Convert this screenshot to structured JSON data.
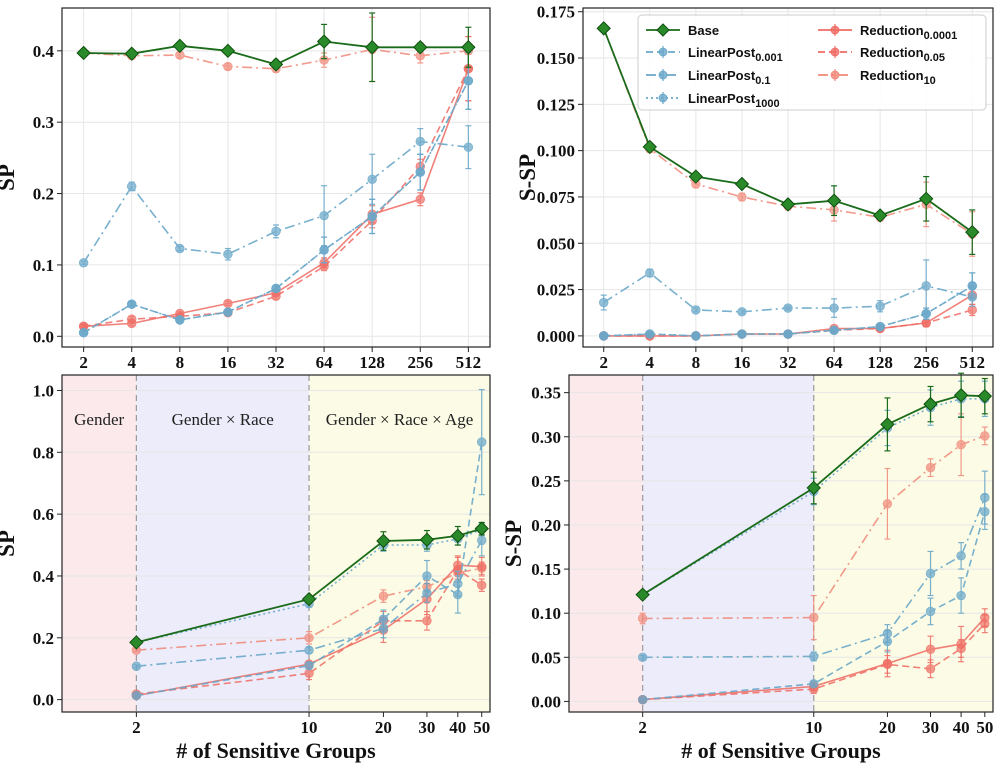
{
  "chart_data": [
    {
      "type": "line",
      "panel": "top-left",
      "xscale": "log2",
      "xlabel": "",
      "ylabel": "SP",
      "x": [
        2,
        4,
        8,
        16,
        32,
        64,
        128,
        256,
        512
      ],
      "xticklabels": [
        "2",
        "4",
        "8",
        "16",
        "32",
        "64",
        "128",
        "256",
        "512"
      ],
      "ylim": [
        -0.015,
        0.46
      ],
      "yticks": [
        "0.0",
        "0.1",
        "0.2",
        "0.3",
        "0.4"
      ],
      "series": [
        {
          "name": "Base",
          "values": [
            0.397,
            0.396,
            0.407,
            0.4,
            0.381,
            0.413,
            0.405,
            0.405,
            0.405
          ],
          "err": [
            0.003,
            0.003,
            0.004,
            0.004,
            0.006,
            0.024,
            0.048,
            0.006,
            0.028
          ]
        },
        {
          "name": "LinearPost_0.001",
          "values": [
            0.005,
            0.045,
            0.023,
            0.034,
            0.067,
            0.121,
            0.168,
            0.23,
            0.358
          ],
          "err": [
            0.002,
            0.003,
            0.003,
            0.003,
            0.004,
            0.018,
            0.024,
            0.025,
            0.04
          ]
        },
        {
          "name": "LinearPost_0.1",
          "values": [
            0.103,
            0.21,
            0.123,
            0.115,
            0.147,
            0.169,
            0.22,
            0.273,
            0.265
          ],
          "err": [
            0.002,
            0.006,
            0.003,
            0.008,
            0.009,
            0.042,
            0.035,
            0.018,
            0.03
          ]
        },
        {
          "name": "LinearPost_1000",
          "values": [
            0.005,
            0.045,
            0.023,
            0.034,
            0.067,
            0.121,
            0.168,
            0.23,
            0.358
          ],
          "err": [
            0.002,
            0.003,
            0.003,
            0.003,
            0.004,
            0.018,
            0.024,
            0.025,
            0.04
          ]
        },
        {
          "name": "Reduction_0.0001",
          "values": [
            0.014,
            0.018,
            0.032,
            0.046,
            0.061,
            0.103,
            0.171,
            0.192,
            0.375
          ],
          "err": [
            0.002,
            0.003,
            0.003,
            0.003,
            0.004,
            0.007,
            0.012,
            0.009,
            0.045
          ]
        },
        {
          "name": "Reduction_0.05",
          "values": [
            0.014,
            0.024,
            0.028,
            0.033,
            0.056,
            0.098,
            0.162,
            0.238,
            0.375
          ],
          "err": [
            0.002,
            0.004,
            0.003,
            0.003,
            0.004,
            0.006,
            0.01,
            0.01,
            0.045
          ]
        },
        {
          "name": "Reduction_10",
          "values": [
            0.397,
            0.393,
            0.394,
            0.378,
            0.375,
            0.387,
            0.402,
            0.393,
            0.4
          ],
          "err": [
            0.003,
            0.004,
            0.004,
            0.004,
            0.005,
            0.01,
            0.045,
            0.01,
            0.005
          ]
        }
      ]
    },
    {
      "type": "line",
      "panel": "top-right",
      "xscale": "log2",
      "xlabel": "",
      "ylabel": "S-SP",
      "x": [
        2,
        4,
        8,
        16,
        32,
        64,
        128,
        256,
        512
      ],
      "xticklabels": [
        "2",
        "4",
        "8",
        "16",
        "32",
        "64",
        "128",
        "256",
        "512"
      ],
      "ylim": [
        -0.006,
        0.177
      ],
      "yticks": [
        "0.000",
        "0.025",
        "0.050",
        "0.075",
        "0.100",
        "0.125",
        "0.150",
        "0.175"
      ],
      "series": [
        {
          "name": "Base",
          "values": [
            0.166,
            0.102,
            0.086,
            0.082,
            0.071,
            0.073,
            0.065,
            0.074,
            0.056
          ],
          "err": [
            0.001,
            0.002,
            0.002,
            0.002,
            0.002,
            0.008,
            0.002,
            0.012,
            0.012
          ]
        },
        {
          "name": "LinearPost_0.001",
          "values": [
            0.0,
            0.001,
            0.0,
            0.001,
            0.001,
            0.003,
            0.005,
            0.012,
            0.027
          ],
          "err": [
            0.0005,
            0.0005,
            0.0005,
            0.0005,
            0.0005,
            0.001,
            0.001,
            0.003,
            0.007
          ]
        },
        {
          "name": "LinearPost_0.1",
          "values": [
            0.018,
            0.034,
            0.014,
            0.013,
            0.015,
            0.015,
            0.016,
            0.027,
            0.021
          ],
          "err": [
            0.004,
            0.002,
            0.001,
            0.001,
            0.001,
            0.005,
            0.003,
            0.014,
            0.005
          ]
        },
        {
          "name": "LinearPost_1000",
          "values": [
            0.0,
            0.001,
            0.0,
            0.001,
            0.001,
            0.003,
            0.005,
            0.012,
            0.027
          ],
          "err": [
            0.0005,
            0.0005,
            0.0005,
            0.0005,
            0.0005,
            0.001,
            0.001,
            0.003,
            0.007
          ]
        },
        {
          "name": "Reduction_0.0001",
          "values": [
            0.0,
            0.0,
            0.0,
            0.001,
            0.001,
            0.004,
            0.004,
            0.007,
            0.022
          ],
          "err": [
            0.0005,
            0.0005,
            0.0005,
            0.0005,
            0.0005,
            0.001,
            0.001,
            0.002,
            0.005
          ]
        },
        {
          "name": "Reduction_0.05",
          "values": [
            0.0,
            0.0,
            0.0,
            0.001,
            0.001,
            0.003,
            0.004,
            0.007,
            0.014
          ],
          "err": [
            0.0005,
            0.0005,
            0.0005,
            0.0005,
            0.0005,
            0.001,
            0.001,
            0.002,
            0.003
          ]
        },
        {
          "name": "Reduction_10",
          "values": [
            0.166,
            0.101,
            0.082,
            0.075,
            0.07,
            0.068,
            0.064,
            0.071,
            0.055
          ],
          "err": [
            0.001,
            0.002,
            0.002,
            0.002,
            0.002,
            0.006,
            0.002,
            0.012,
            0.012
          ]
        }
      ]
    },
    {
      "type": "line",
      "panel": "bottom-left",
      "xscale": "log",
      "xlabel": "# of Sensitive Groups",
      "ylabel": "SP",
      "x": [
        2,
        10,
        20,
        30,
        40,
        50
      ],
      "xticklabels": [
        "2",
        "10",
        "20",
        "30",
        "40",
        "50"
      ],
      "xlim": [
        1.0,
        54
      ],
      "ylim": [
        -0.04,
        1.05
      ],
      "yticks": [
        "0.0",
        "0.2",
        "0.4",
        "0.6",
        "0.8",
        "1.0"
      ],
      "regions": [
        {
          "label": "Gender",
          "from": 1.0,
          "to": 2,
          "color": "#fce9ec"
        },
        {
          "label": "Gender × Race",
          "from": 2,
          "to": 10,
          "color": "#ececfb"
        },
        {
          "label": "Gender × Race × Age",
          "from": 10,
          "to": 54,
          "color": "#fcfce6"
        }
      ],
      "series": [
        {
          "name": "Base",
          "values": [
            0.185,
            0.325,
            0.513,
            0.517,
            0.53,
            0.553
          ],
          "err": [
            0.01,
            0.01,
            0.03,
            0.03,
            0.03,
            0.02
          ]
        },
        {
          "name": "LinearPost_0.001",
          "values": [
            0.013,
            0.11,
            0.26,
            0.4,
            0.34,
            0.833
          ],
          "err": [
            0.005,
            0.01,
            0.03,
            0.05,
            0.06,
            0.17
          ]
        },
        {
          "name": "LinearPost_0.1",
          "values": [
            0.108,
            0.16,
            0.23,
            0.345,
            0.375,
            0.515
          ],
          "err": [
            0.005,
            0.01,
            0.03,
            0.03,
            0.04,
            0.05
          ]
        },
        {
          "name": "LinearPost_1000",
          "values": [
            0.185,
            0.31,
            0.5,
            0.5,
            0.52,
            0.55
          ],
          "err": [
            0.01,
            0.01,
            0.02,
            0.02,
            0.02,
            0.02
          ]
        },
        {
          "name": "Reduction_0.0001",
          "values": [
            0.013,
            0.115,
            0.225,
            0.325,
            0.435,
            0.43
          ],
          "err": [
            0.005,
            0.01,
            0.04,
            0.05,
            0.03,
            0.03
          ]
        },
        {
          "name": "Reduction_0.05",
          "values": [
            0.018,
            0.085,
            0.255,
            0.255,
            0.42,
            0.37
          ],
          "err": [
            0.005,
            0.02,
            0.03,
            0.03,
            0.04,
            0.02
          ]
        },
        {
          "name": "Reduction_10",
          "values": [
            0.16,
            0.2,
            0.335,
            0.365,
            0.41,
            0.425
          ],
          "err": [
            0.005,
            0.02,
            0.02,
            0.02,
            0.02,
            0.02
          ]
        }
      ]
    },
    {
      "type": "line",
      "panel": "bottom-right",
      "xscale": "log",
      "xlabel": "# of Sensitive Groups",
      "ylabel": "S-SP",
      "x": [
        2,
        10,
        20,
        30,
        40,
        50
      ],
      "xticklabels": [
        "2",
        "10",
        "20",
        "30",
        "40",
        "50"
      ],
      "xlim": [
        1.0,
        54
      ],
      "ylim": [
        -0.012,
        0.37
      ],
      "yticks": [
        "0.00",
        "0.05",
        "0.10",
        "0.15",
        "0.20",
        "0.25",
        "0.30",
        "0.35"
      ],
      "regions": [
        {
          "label": "",
          "from": 1.0,
          "to": 2,
          "color": "#fce9ec"
        },
        {
          "label": "",
          "from": 2,
          "to": 10,
          "color": "#ececfb"
        },
        {
          "label": "",
          "from": 10,
          "to": 54,
          "color": "#fcfce6"
        }
      ],
      "series": [
        {
          "name": "Base",
          "values": [
            0.121,
            0.242,
            0.314,
            0.337,
            0.347,
            0.346
          ],
          "err": [
            0.003,
            0.018,
            0.03,
            0.02,
            0.025,
            0.02
          ]
        },
        {
          "name": "LinearPost_0.001",
          "values": [
            0.002,
            0.02,
            0.068,
            0.102,
            0.12,
            0.215
          ],
          "err": [
            0.001,
            0.003,
            0.012,
            0.015,
            0.02,
            0.02
          ]
        },
        {
          "name": "LinearPost_0.1",
          "values": [
            0.05,
            0.051,
            0.077,
            0.145,
            0.165,
            0.231
          ],
          "err": [
            0.002,
            0.005,
            0.01,
            0.025,
            0.015,
            0.03
          ]
        },
        {
          "name": "LinearPost_1000",
          "values": [
            0.121,
            0.238,
            0.31,
            0.333,
            0.343,
            0.343
          ],
          "err": [
            0.003,
            0.015,
            0.02,
            0.02,
            0.02,
            0.02
          ]
        },
        {
          "name": "Reduction_0.0001",
          "values": [
            0.002,
            0.017,
            0.043,
            0.059,
            0.065,
            0.095
          ],
          "err": [
            0.001,
            0.005,
            0.015,
            0.015,
            0.02,
            0.01
          ]
        },
        {
          "name": "Reduction_0.05",
          "values": [
            0.002,
            0.014,
            0.042,
            0.037,
            0.06,
            0.088
          ],
          "err": [
            0.001,
            0.005,
            0.01,
            0.01,
            0.01,
            0.01
          ]
        },
        {
          "name": "Reduction_10",
          "values": [
            0.094,
            0.095,
            0.224,
            0.265,
            0.291,
            0.301
          ],
          "err": [
            0.006,
            0.025,
            0.04,
            0.01,
            0.035,
            0.01
          ]
        }
      ]
    }
  ],
  "legend": {
    "placement": "top-right of top-right panel",
    "entries": [
      {
        "name": "Base",
        "base": "Base",
        "sub": ""
      },
      {
        "name": "LinearPost_0.001",
        "base": "LinearPost",
        "sub": "0.001"
      },
      {
        "name": "LinearPost_0.1",
        "base": "LinearPost",
        "sub": "0.1"
      },
      {
        "name": "LinearPost_1000",
        "base": "LinearPost",
        "sub": "1000"
      },
      {
        "name": "Reduction_0.0001",
        "base": "Reduction",
        "sub": "0.0001"
      },
      {
        "name": "Reduction_0.05",
        "base": "Reduction",
        "sub": "0.05"
      },
      {
        "name": "Reduction_10",
        "base": "Reduction",
        "sub": "10"
      }
    ]
  },
  "colors": {
    "Base": "#1a6b1a",
    "Base_marker": "#2a8a2a",
    "LinearPost": "#6aa8c9",
    "Reduction": "#ef6b63",
    "Reduction_10": "#f08878"
  }
}
